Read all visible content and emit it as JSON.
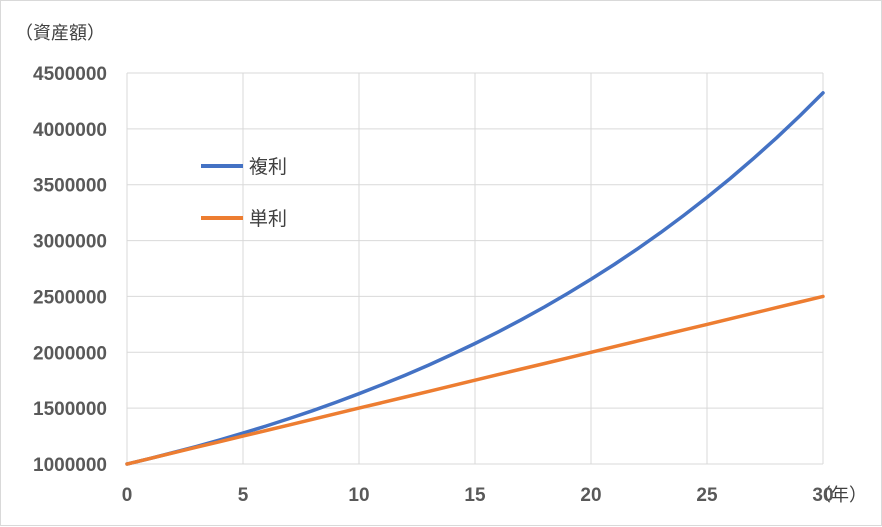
{
  "chart_data": {
    "type": "line",
    "x": [
      0,
      1,
      2,
      3,
      4,
      5,
      6,
      7,
      8,
      9,
      10,
      11,
      12,
      13,
      14,
      15,
      16,
      17,
      18,
      19,
      20,
      21,
      22,
      23,
      24,
      25,
      26,
      27,
      28,
      29,
      30
    ],
    "series": [
      {
        "name": "複利",
        "color": "#4472C4",
        "values": [
          1000000,
          1050000,
          1102500,
          1157625,
          1215506,
          1276282,
          1340096,
          1407100,
          1477455,
          1551328,
          1628895,
          1710339,
          1795856,
          1885649,
          1979932,
          2078928,
          2182875,
          2292018,
          2406619,
          2526950,
          2653298,
          2785963,
          2925261,
          3071524,
          3225100,
          3386355,
          3555673,
          3733456,
          3920129,
          4116136,
          4321942
        ]
      },
      {
        "name": "単利",
        "color": "#ED7D31",
        "values": [
          1000000,
          1050000,
          1100000,
          1150000,
          1200000,
          1250000,
          1300000,
          1350000,
          1400000,
          1450000,
          1500000,
          1550000,
          1600000,
          1650000,
          1700000,
          1750000,
          1800000,
          1850000,
          1900000,
          1950000,
          2000000,
          2050000,
          2100000,
          2150000,
          2200000,
          2250000,
          2300000,
          2350000,
          2400000,
          2450000,
          2500000
        ]
      }
    ],
    "xlabel": "（年）",
    "ylabel": "（資産額）",
    "xlim": [
      0,
      30
    ],
    "ylim": [
      1000000,
      4500000
    ],
    "xticks": [
      "0",
      "5",
      "10",
      "15",
      "20",
      "25",
      "30"
    ],
    "yticks": [
      "1000000",
      "1500000",
      "2000000",
      "2500000",
      "3000000",
      "3500000",
      "4000000",
      "4500000"
    ],
    "grid": true,
    "legend_position": "top-left"
  }
}
